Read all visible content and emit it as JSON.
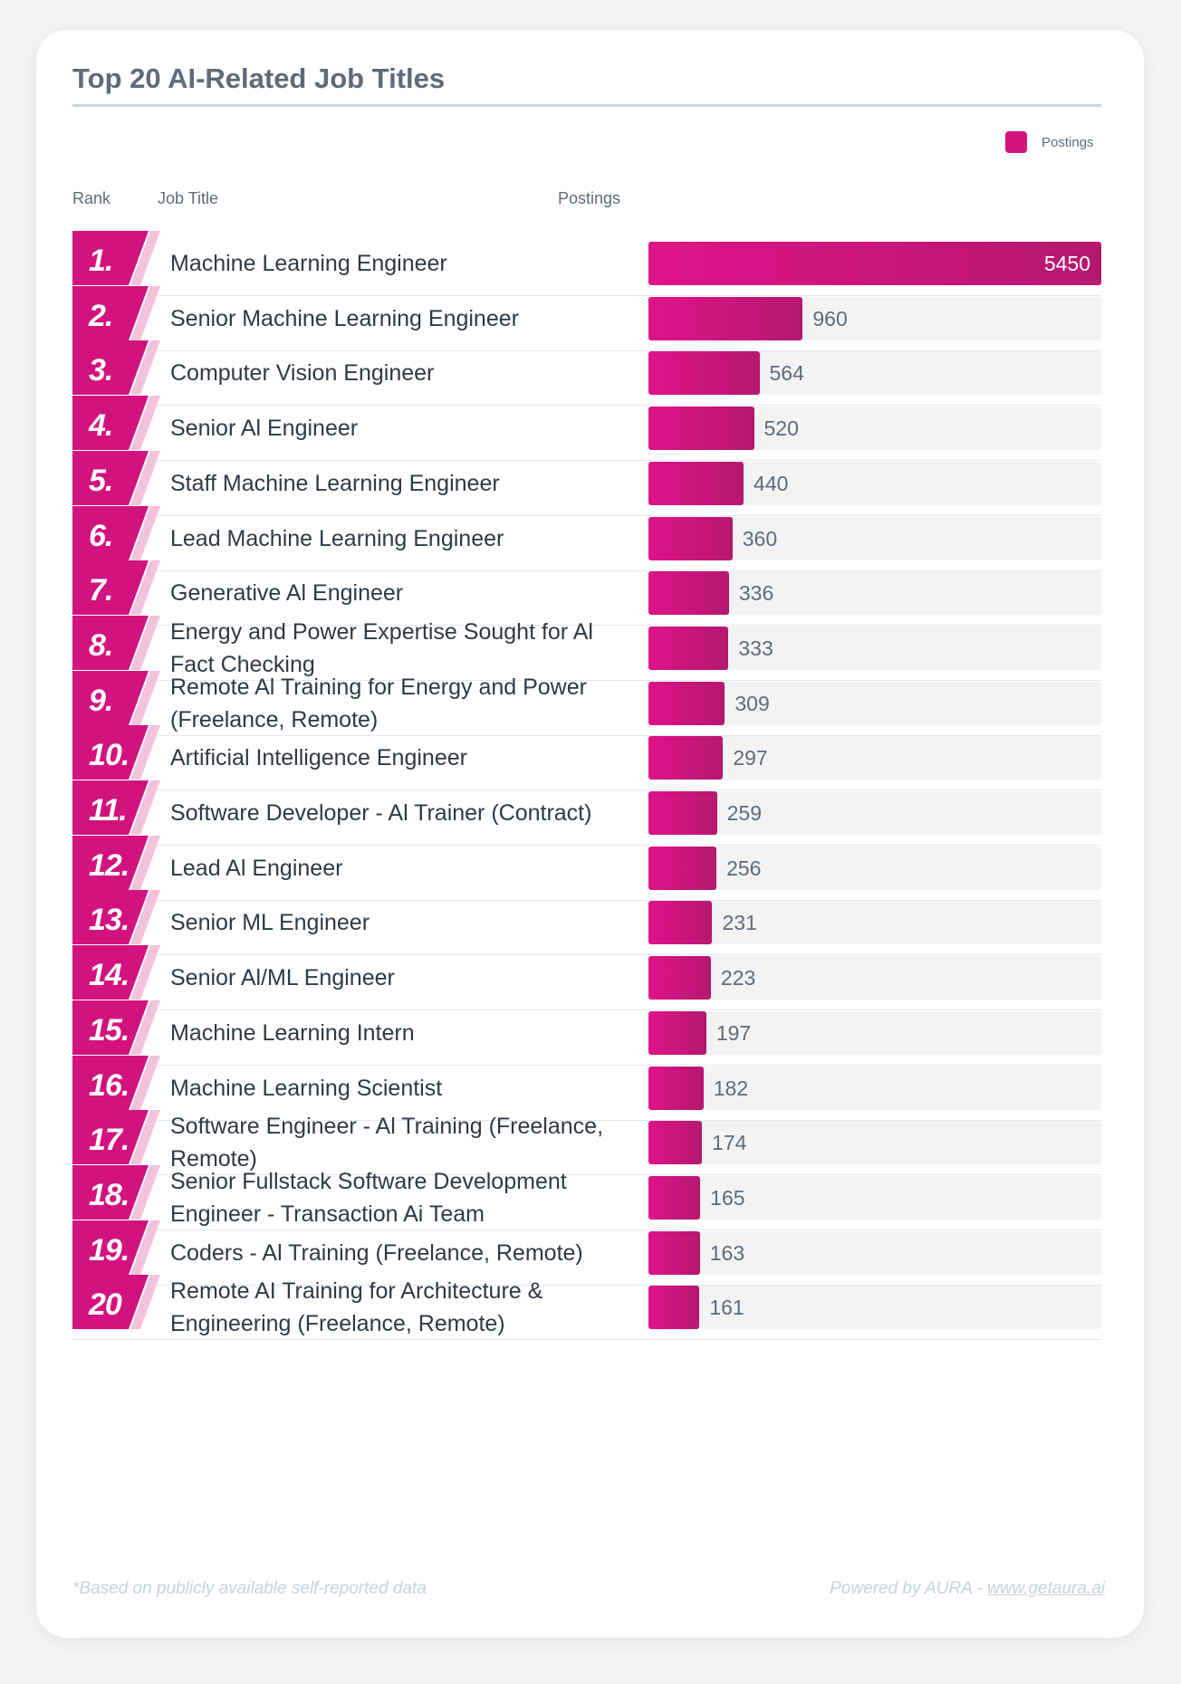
{
  "title": "Top 20 AI-Related Job Titles",
  "legend": {
    "label": "Postings",
    "color": "#d2137f"
  },
  "headers": {
    "rank": "Rank",
    "job": "Job Title",
    "postings": "Postings"
  },
  "colors": {
    "bar_start": "#de1388",
    "bar_end": "#b51870",
    "rank_tile": "#d2137f",
    "stripe": "#f4c2dc",
    "track": "#f3f3f4"
  },
  "chart_data": {
    "type": "bar",
    "orientation": "horizontal",
    "title": "Top 20 AI-Related Job Titles",
    "ranks": [
      "1.",
      "2.",
      "3.",
      "4.",
      "5.",
      "6.",
      "7.",
      "8.",
      "9.",
      "10.",
      "11.",
      "12.",
      "13.",
      "14.",
      "15.",
      "16.",
      "17.",
      "18.",
      "19.",
      "20"
    ],
    "categories": [
      "Machine Learning Engineer",
      "Senior Machine Learning Engineer",
      "Computer Vision Engineer",
      "Senior Al Engineer",
      "Staff Machine Learning Engineer",
      "Lead Machine Learning Engineer",
      "Generative Al Engineer",
      "Energy and Power Expertise Sought for Al Fact Checking",
      "Remote Al Training for Energy and Power (Freelance, Remote)",
      "Artificial Intelligence Engineer",
      "Software Developer - Al Trainer (Contract)",
      "Lead Al Engineer",
      "Senior ML Engineer",
      "Senior Al/ML Engineer",
      "Machine Learning Intern",
      "Machine Learning Scientist",
      "Software Engineer - Al Training (Freelance, Remote)",
      "Senior Fullstack Software Development Engineer - Transaction Ai Team",
      "Coders - Al Training (Freelance, Remote)",
      "Remote AI Training for Architecture & Engineering (Freelance, Remote)"
    ],
    "series": [
      {
        "name": "Postings",
        "values": [
          5450,
          960,
          564,
          520,
          440,
          360,
          336,
          333,
          309,
          297,
          259,
          256,
          231,
          223,
          197,
          182,
          174,
          165,
          163,
          161
        ]
      }
    ],
    "xlim": [
      0,
      5450
    ],
    "legend_position": "top-right",
    "grid": false
  },
  "footer": {
    "note": "*Based on publicly available self-reported data",
    "powered_prefix": "Powered by AURA - ",
    "powered_link": "www.getaura.ai"
  }
}
